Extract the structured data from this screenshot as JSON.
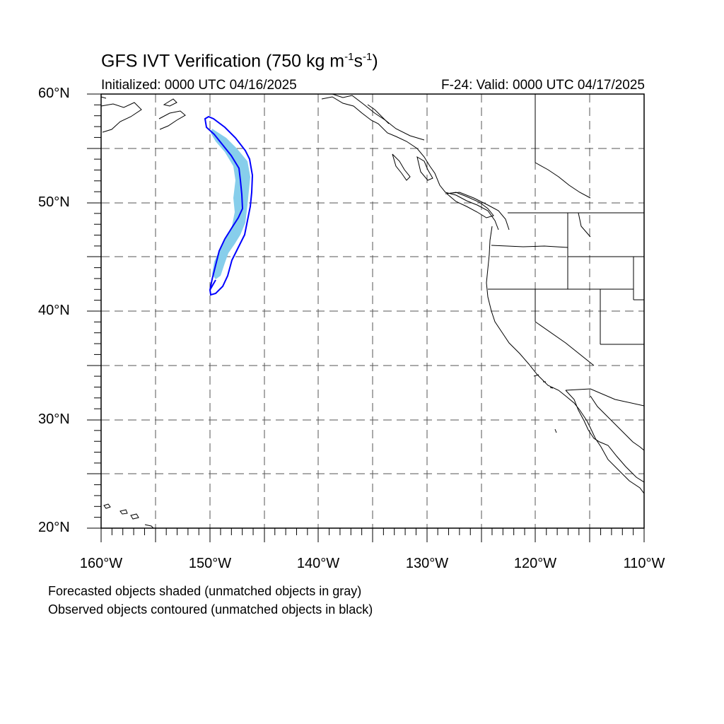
{
  "header": {
    "title_main": "GFS IVT Verification (750 kg m",
    "title_sup1": "-1",
    "title_mid": "s",
    "title_sup2": "-1",
    "title_end": ")",
    "initialized": "Initialized: 0000 UTC 04/16/2025",
    "valid": "F-24: Valid: 0000 UTC 04/17/2025"
  },
  "map": {
    "extent": {
      "lon_min": -160,
      "lon_max": -110,
      "lat_min": 20,
      "lat_max": 60
    },
    "lat_labels": [
      "60°N",
      "50°N",
      "40°N",
      "30°N",
      "20°N"
    ],
    "lon_labels": [
      "160°W",
      "150°W",
      "140°W",
      "130°W",
      "120°W",
      "110°W"
    ],
    "gridlines": "dashed",
    "colors": {
      "forecast_fill": "#87CEEB",
      "observed_contour": "#0000FF",
      "coast": "#000000"
    }
  },
  "footer": {
    "note1": "Forecasted objects shaded (unmatched objects in gray)",
    "note2": "Observed objects contoured (unmatched objects in black)"
  }
}
